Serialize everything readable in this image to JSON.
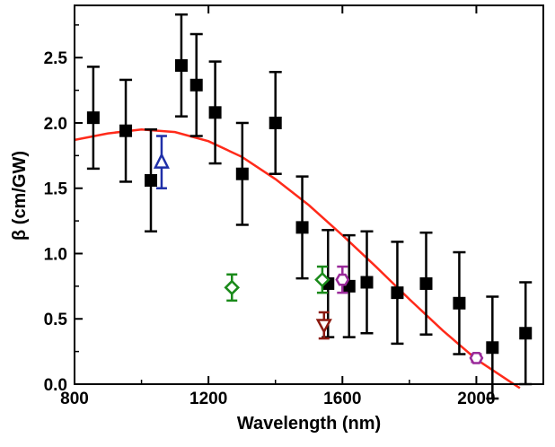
{
  "chart_data": {
    "type": "scatter",
    "title": "",
    "xlabel": "Wavelength (nm)",
    "ylabel": "β (cm/GW)",
    "xlim": [
      800,
      2200
    ],
    "ylim": [
      0,
      2.9
    ],
    "xticks": [
      "800",
      "1200",
      "1600",
      "2000"
    ],
    "yticks": [
      "0.0",
      "0.5",
      "1.0",
      "1.5",
      "2.0",
      "2.5"
    ],
    "grid": false,
    "series": [
      {
        "name": "squares",
        "marker": "square",
        "color": "#000000",
        "points": [
          {
            "x": 856,
            "y": 2.04,
            "err": 0.39
          },
          {
            "x": 953,
            "y": 1.94,
            "err": 0.39
          },
          {
            "x": 1028,
            "y": 1.56,
            "err": 0.39
          },
          {
            "x": 1119,
            "y": 2.44,
            "err": 0.39
          },
          {
            "x": 1164,
            "y": 2.29,
            "err": 0.39
          },
          {
            "x": 1220,
            "y": 2.08,
            "err": 0.39
          },
          {
            "x": 1301,
            "y": 1.61,
            "err": 0.39
          },
          {
            "x": 1400,
            "y": 2.0,
            "err": 0.39
          },
          {
            "x": 1480,
            "y": 1.2,
            "err": 0.39
          },
          {
            "x": 1557,
            "y": 0.77,
            "err": 0.41
          },
          {
            "x": 1620,
            "y": 0.75,
            "err": 0.39
          },
          {
            "x": 1673,
            "y": 0.78,
            "err": 0.39
          },
          {
            "x": 1764,
            "y": 0.7,
            "err": 0.39
          },
          {
            "x": 1850,
            "y": 0.77,
            "err": 0.39
          },
          {
            "x": 1949,
            "y": 0.62,
            "err": 0.39
          },
          {
            "x": 2048,
            "y": 0.28,
            "err": 0.39
          },
          {
            "x": 2147,
            "y": 0.39,
            "err": 0.39
          }
        ]
      },
      {
        "name": "triangle-up",
        "marker": "triangle-up",
        "color": "#1f2fa8",
        "points": [
          {
            "x": 1060,
            "y": 1.7,
            "err": 0.2
          }
        ]
      },
      {
        "name": "diamonds",
        "marker": "diamond",
        "color": "#1a8a1a",
        "points": [
          {
            "x": 1270,
            "y": 0.74,
            "err": 0.1
          },
          {
            "x": 1540,
            "y": 0.8,
            "err": 0.1
          }
        ]
      },
      {
        "name": "triangle-down",
        "marker": "triangle-down",
        "color": "#8b1a10",
        "points": [
          {
            "x": 1545,
            "y": 0.45,
            "err": 0.1
          }
        ]
      },
      {
        "name": "hexagons",
        "marker": "hexagon",
        "color": "#9a2a9a",
        "points": [
          {
            "x": 1600,
            "y": 0.8,
            "err": 0.1
          },
          {
            "x": 2000,
            "y": 0.2,
            "err": 0.03
          }
        ]
      }
    ],
    "fit": {
      "name": "fit",
      "color": "#ff2a1a",
      "x": [
        800,
        900,
        1000,
        1100,
        1200,
        1300,
        1400,
        1500,
        1600,
        1700,
        1800,
        1900,
        2000,
        2100,
        2130
      ],
      "y": [
        1.87,
        1.92,
        1.95,
        1.93,
        1.86,
        1.74,
        1.57,
        1.37,
        1.14,
        0.9,
        0.65,
        0.41,
        0.19,
        0.02,
        -0.03
      ]
    }
  }
}
